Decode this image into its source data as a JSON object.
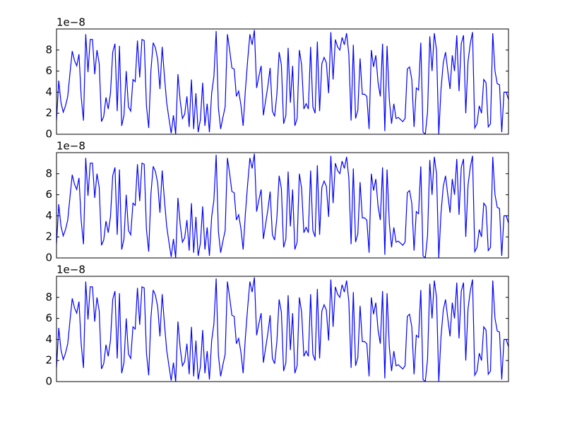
{
  "chart_data": [
    {
      "type": "line",
      "offset_label": "1e−8",
      "color": "#0000ff",
      "xlim": [
        0,
        201
      ],
      "ylim": [
        0,
        10
      ],
      "yticks": [
        0,
        2,
        4,
        6,
        8
      ],
      "values": [
        1.3,
        5.1,
        3.0,
        2.1,
        2.7,
        3.6,
        5.8,
        7.9,
        7.0,
        6.5,
        7.6,
        3.5,
        1.3,
        9.5,
        5.9,
        9.0,
        9.0,
        5.7,
        8.0,
        6.7,
        1.2,
        1.7,
        3.5,
        2.4,
        3.9,
        7.8,
        8.6,
        2.2,
        8.4,
        0.8,
        1.8,
        6.0,
        2.6,
        2.2,
        5.2,
        5.0,
        8.9,
        5.4,
        9.0,
        8.9,
        2.7,
        0.6,
        6.1,
        8.7,
        8.2,
        7.1,
        4.3,
        8.3,
        5.5,
        3.0,
        1.5,
        0.1,
        1.8,
        0.0,
        5.7,
        3.2,
        1.5,
        1.9,
        3.6,
        0.7,
        5.2,
        0.5,
        3.9,
        0.2,
        1.4,
        4.9,
        0.8,
        2.9,
        0.2,
        3.9,
        5.5,
        9.8,
        2.5,
        0.5,
        1.6,
        2.6,
        9.5,
        8.0,
        6.3,
        6.2,
        3.6,
        4.1,
        2.8,
        0.8,
        4.2,
        7.0,
        9.5,
        8.5,
        9.9,
        4.4,
        5.5,
        6.5,
        1.8,
        3.2,
        4.6,
        6.3,
        2.2,
        1.7,
        3.8,
        7.8,
        6.6,
        1.0,
        1.8,
        8.2,
        3.0,
        6.5,
        0.8,
        1.5,
        8.0,
        6.6,
        2.4,
        2.9,
        2.4,
        8.3,
        2.6,
        2.0,
        8.8,
        2.2,
        6.7,
        7.3,
        6.8,
        3.9,
        9.7,
        5.2,
        9.0,
        8.3,
        8.0,
        9.2,
        8.5,
        9.6,
        7.6,
        1.3,
        8.5,
        1.5,
        2.3,
        7.2,
        3.8,
        3.8,
        3.6,
        0.5,
        8.0,
        6.4,
        7.5,
        4.9,
        3.6,
        8.6,
        0.3,
        8.4,
        3.3,
        1.0,
        2.9,
        1.5,
        1.6,
        1.4,
        1.2,
        1.5,
        6.2,
        6.4,
        5.2,
        0.7,
        4.4,
        4.2,
        8.7,
        0.2,
        0.0,
        2.1,
        9.3,
        6.0,
        9.6,
        8.0,
        0.0,
        4.3,
        6.8,
        7.8,
        6.0,
        4.3,
        7.5,
        6.0,
        9.4,
        4.1,
        8.6,
        9.4,
        2.0,
        6.9,
        8.6,
        9.7,
        0.6,
        1.0,
        2.7,
        2.0,
        5.2,
        4.9,
        0.7,
        1.0,
        9.6,
        6.0,
        4.8,
        4.7,
        0.2,
        4.0,
        4.0,
        3.3
      ]
    },
    {
      "type": "line",
      "offset_label": "1e−8",
      "color": "#0000ff",
      "xlim": [
        0,
        201
      ],
      "ylim": [
        0,
        10
      ],
      "yticks": [
        0,
        2,
        4,
        6,
        8
      ],
      "values": [
        1.3,
        5.1,
        3.0,
        2.1,
        2.7,
        3.6,
        5.8,
        7.9,
        7.0,
        6.5,
        7.6,
        3.5,
        1.3,
        9.5,
        5.9,
        9.0,
        9.0,
        5.7,
        8.0,
        6.7,
        1.2,
        1.7,
        3.5,
        2.4,
        3.9,
        7.8,
        8.6,
        2.2,
        8.4,
        0.8,
        1.8,
        6.0,
        2.6,
        2.2,
        5.2,
        5.0,
        8.9,
        5.4,
        9.0,
        8.9,
        2.7,
        0.6,
        6.1,
        8.7,
        8.2,
        7.1,
        4.3,
        8.3,
        5.5,
        3.0,
        1.5,
        0.1,
        1.8,
        0.0,
        5.7,
        3.2,
        1.5,
        1.9,
        3.6,
        0.7,
        5.2,
        0.5,
        3.9,
        0.2,
        1.4,
        4.9,
        0.8,
        2.9,
        0.2,
        3.9,
        5.5,
        9.8,
        2.5,
        0.5,
        1.6,
        2.6,
        9.5,
        8.0,
        6.3,
        6.2,
        3.6,
        4.1,
        2.8,
        0.8,
        4.2,
        7.0,
        9.5,
        8.5,
        9.9,
        4.4,
        5.5,
        6.5,
        1.8,
        3.2,
        4.6,
        6.3,
        2.2,
        1.7,
        3.8,
        7.8,
        6.6,
        1.0,
        1.8,
        8.2,
        3.0,
        6.5,
        0.8,
        1.5,
        8.0,
        6.6,
        2.4,
        2.9,
        2.4,
        8.3,
        2.6,
        2.0,
        8.8,
        2.2,
        6.7,
        7.3,
        6.8,
        3.9,
        9.7,
        5.2,
        9.0,
        8.3,
        8.0,
        9.2,
        8.5,
        9.6,
        7.6,
        1.3,
        8.5,
        1.5,
        2.3,
        7.2,
        3.8,
        3.8,
        3.6,
        0.5,
        8.0,
        6.4,
        7.5,
        4.9,
        3.6,
        8.6,
        0.3,
        8.4,
        3.3,
        1.0,
        2.9,
        1.5,
        1.6,
        1.4,
        1.2,
        1.5,
        6.2,
        6.4,
        5.2,
        0.7,
        4.4,
        4.2,
        8.7,
        0.2,
        0.0,
        2.1,
        9.3,
        6.0,
        9.6,
        8.0,
        0.0,
        4.3,
        6.8,
        7.8,
        6.0,
        4.3,
        7.5,
        6.0,
        9.4,
        4.1,
        8.6,
        9.4,
        2.0,
        6.9,
        8.6,
        9.7,
        0.6,
        1.0,
        2.7,
        2.0,
        5.2,
        4.9,
        0.7,
        1.0,
        9.6,
        6.0,
        4.8,
        4.7,
        0.2,
        4.0,
        4.0,
        3.3
      ]
    },
    {
      "type": "line",
      "offset_label": "1e−8",
      "color": "#0000ff",
      "xlim": [
        0,
        201
      ],
      "ylim": [
        0,
        10
      ],
      "yticks": [
        0,
        2,
        4,
        6,
        8
      ],
      "values": [
        1.3,
        5.1,
        3.0,
        2.1,
        2.7,
        3.6,
        5.8,
        7.9,
        7.0,
        6.5,
        7.6,
        3.5,
        1.3,
        9.5,
        5.9,
        9.0,
        9.0,
        5.7,
        8.0,
        6.7,
        1.2,
        1.7,
        3.5,
        2.4,
        3.9,
        7.8,
        8.6,
        2.2,
        8.4,
        0.8,
        1.8,
        6.0,
        2.6,
        2.2,
        5.2,
        5.0,
        8.9,
        5.4,
        9.0,
        8.9,
        2.7,
        0.6,
        6.1,
        8.7,
        8.2,
        7.1,
        4.3,
        8.3,
        5.5,
        3.0,
        1.5,
        0.1,
        1.8,
        0.0,
        5.7,
        3.2,
        1.5,
        1.9,
        3.6,
        0.7,
        5.2,
        0.5,
        3.9,
        0.2,
        1.4,
        4.9,
        0.8,
        2.9,
        0.2,
        3.9,
        5.5,
        9.8,
        2.5,
        0.5,
        1.6,
        2.6,
        9.5,
        8.0,
        6.3,
        6.2,
        3.6,
        4.1,
        2.8,
        0.8,
        4.2,
        7.0,
        9.5,
        8.5,
        9.9,
        4.4,
        5.5,
        6.5,
        1.8,
        3.2,
        4.6,
        6.3,
        2.2,
        1.7,
        3.8,
        7.8,
        6.6,
        1.0,
        1.8,
        8.2,
        3.0,
        6.5,
        0.8,
        1.5,
        8.0,
        6.6,
        2.4,
        2.9,
        2.4,
        8.3,
        2.6,
        2.0,
        8.8,
        2.2,
        6.7,
        7.3,
        6.8,
        3.9,
        9.7,
        5.2,
        9.0,
        8.3,
        8.0,
        9.2,
        8.5,
        9.6,
        7.6,
        1.3,
        8.5,
        1.5,
        2.3,
        7.2,
        3.8,
        3.8,
        3.6,
        0.5,
        8.0,
        6.4,
        7.5,
        4.9,
        3.6,
        8.6,
        0.3,
        8.4,
        3.3,
        1.0,
        2.9,
        1.5,
        1.6,
        1.4,
        1.2,
        1.5,
        6.2,
        6.4,
        5.2,
        0.7,
        4.4,
        4.2,
        8.7,
        0.2,
        0.0,
        2.1,
        9.3,
        6.0,
        9.6,
        8.0,
        0.0,
        4.3,
        6.8,
        7.8,
        6.0,
        4.3,
        7.5,
        6.0,
        9.4,
        4.1,
        8.6,
        9.4,
        2.0,
        6.9,
        8.6,
        9.7,
        0.6,
        1.0,
        2.7,
        2.0,
        5.2,
        4.9,
        0.7,
        1.0,
        9.6,
        6.0,
        4.8,
        4.7,
        0.2,
        4.0,
        4.0,
        3.3
      ]
    }
  ]
}
